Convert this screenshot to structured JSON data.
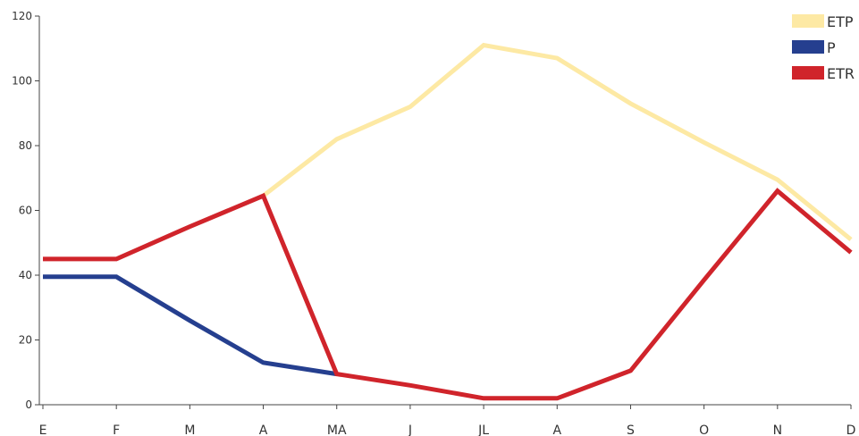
{
  "chart_data": {
    "type": "line",
    "categories": [
      "E",
      "F",
      "M",
      "A",
      "MA",
      "J",
      "JL",
      "A",
      "S",
      "O",
      "N",
      "D"
    ],
    "ylim": [
      0,
      120
    ],
    "yticks": [
      0,
      20,
      40,
      60,
      80,
      100,
      120
    ],
    "grid": false,
    "legend_position": "top-right",
    "series": [
      {
        "name": "ETP",
        "color": "#fde9a4",
        "values": [
          null,
          null,
          null,
          64.5,
          82,
          92,
          111,
          107,
          93,
          81,
          69.5,
          51
        ]
      },
      {
        "name": "P",
        "color": "#253f8f",
        "values": [
          39.5,
          39.5,
          26,
          13,
          9.5,
          null,
          null,
          null,
          null,
          null,
          null,
          null
        ]
      },
      {
        "name": "ETR",
        "color": "#d0242b",
        "values": [
          45,
          45,
          55,
          64.5,
          9.5,
          6,
          2,
          2,
          10.5,
          38.5,
          66,
          47
        ]
      }
    ]
  }
}
